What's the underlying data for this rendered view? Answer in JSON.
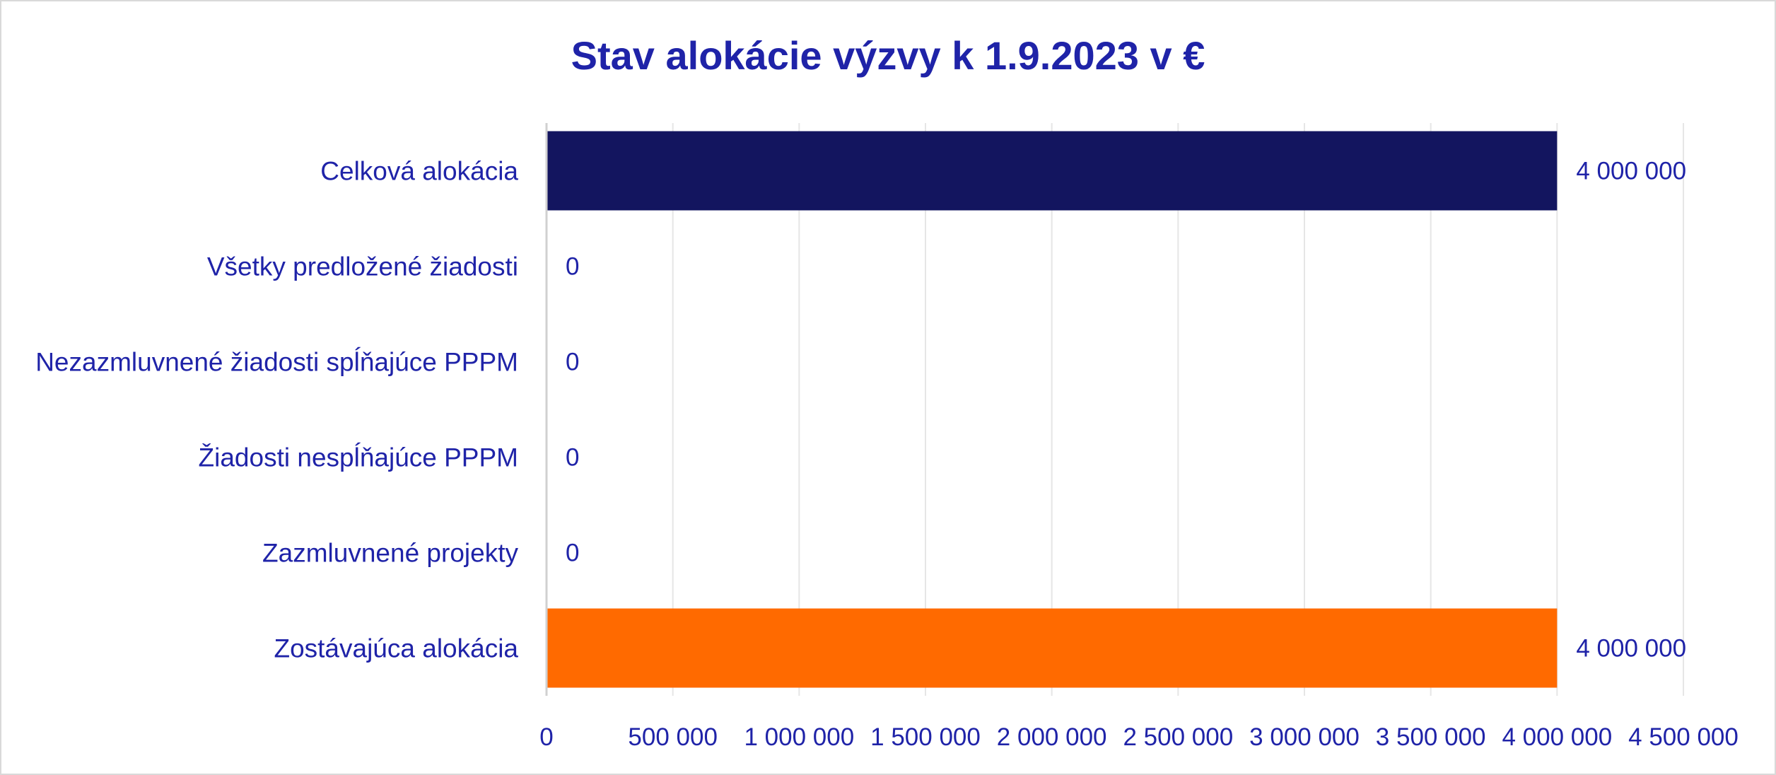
{
  "chart_data": {
    "type": "bar",
    "orientation": "horizontal",
    "title": "Stav alokácie výzvy k 1.9.2023 v €",
    "categories": [
      "Celková alokácia",
      "Všetky predložené žiadosti",
      "Nezazmluvnené žiadosti spĺňajúce PPPM",
      "Žiadosti nespĺňajúce PPPM",
      "Zazmluvnené projekty",
      "Zostávajúca alokácia"
    ],
    "values": [
      4000000,
      0,
      0,
      0,
      0,
      4000000
    ],
    "data_labels": [
      "4 000 000",
      "0",
      "0",
      "0",
      "0",
      "4 000 000"
    ],
    "bar_colors": [
      "#13155f",
      "#13155f",
      "#13155f",
      "#13155f",
      "#13155f",
      "#ff6a00"
    ],
    "xlim": [
      0,
      4500000
    ],
    "x_ticks": [
      0,
      500000,
      1000000,
      1500000,
      2000000,
      2500000,
      3000000,
      3500000,
      4000000,
      4500000
    ],
    "x_tick_labels": [
      "0",
      "500 000",
      "1 000 000",
      "1 500 000",
      "2 000 000",
      "2 500 000",
      "3 000 000",
      "3 500 000",
      "4 000 000",
      "4 500 000"
    ],
    "xlabel": "",
    "ylabel": "",
    "grid": "vertical",
    "legend": "none",
    "text_color": "#1f23a8",
    "grid_color": "#e6e6e6"
  }
}
